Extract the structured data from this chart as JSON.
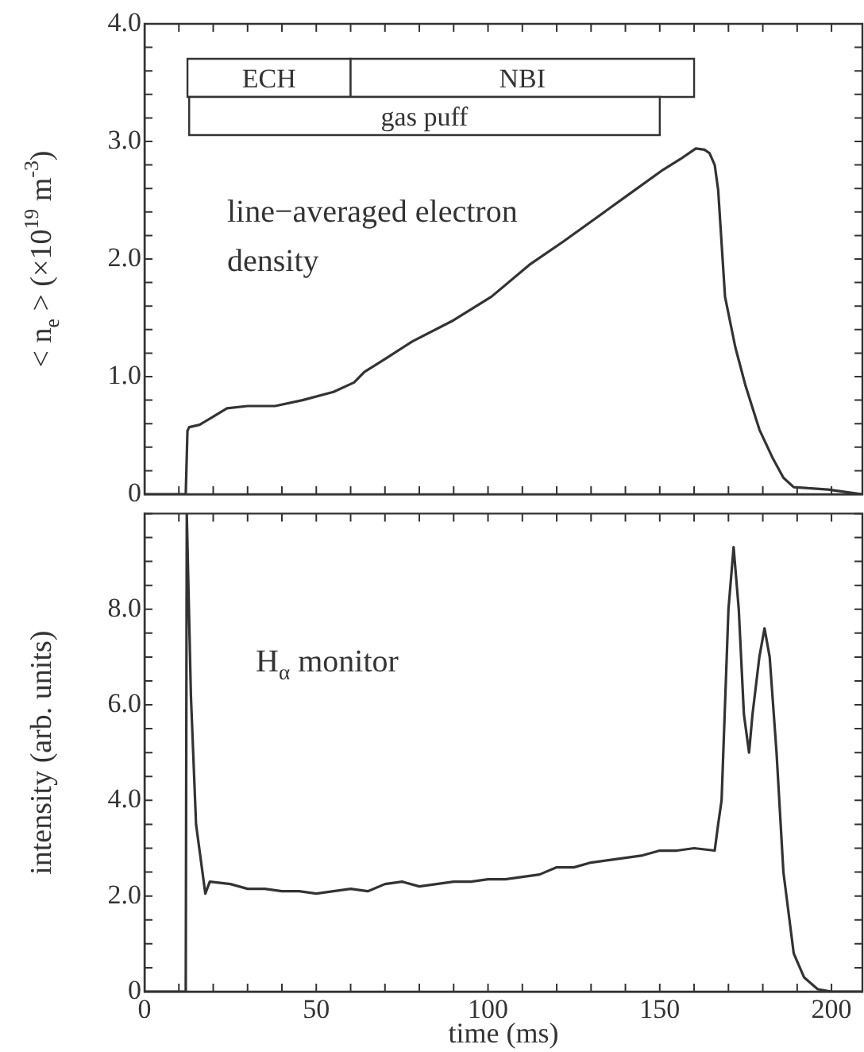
{
  "chart_data": [
    {
      "type": "line",
      "ylabel": "< n$_{e}$ > (×10$^{19}$ m$^{-3}$)",
      "annotations": [
        "line−averaged electron density"
      ],
      "color": "#333333",
      "tick_labels": "y",
      "bands": [
        {
          "axis": "x",
          "from": 12.5,
          "to": 60,
          "label": "ECH"
        },
        {
          "axis": "x",
          "from": 60,
          "to": 160,
          "label": "NBI"
        },
        {
          "axis": "x",
          "from": 13,
          "to": 150,
          "label": "gas puff"
        }
      ],
      "xlim": [
        0,
        209
      ],
      "ylim": [
        0,
        4
      ],
      "xticks": [
        0,
        {
          "value": 10,
          "label": null
        },
        {
          "value": 20,
          "label": null
        },
        {
          "value": 30,
          "label": null
        },
        {
          "value": 40,
          "label": null
        },
        50,
        {
          "value": 60,
          "label": null
        },
        {
          "value": 70,
          "label": null
        },
        {
          "value": 80,
          "label": null
        },
        {
          "value": 90,
          "label": null
        },
        100,
        {
          "value": 110,
          "label": null
        },
        {
          "value": 120,
          "label": null
        },
        {
          "value": 130,
          "label": null
        },
        {
          "value": 140,
          "label": null
        },
        150,
        {
          "value": 160,
          "label": null
        },
        {
          "value": 170,
          "label": null
        },
        {
          "value": 180,
          "label": null
        },
        {
          "value": 190,
          "label": null
        },
        200
      ],
      "yticks": [
        0,
        {
          "value": 0.2,
          "label": null
        },
        {
          "value": 0.4,
          "label": null
        },
        {
          "value": 0.6,
          "label": null
        },
        {
          "value": 0.8,
          "label": null
        },
        {
          "value": 1,
          "label": "1.0"
        },
        {
          "value": 1.2,
          "label": null
        },
        {
          "value": 1.4,
          "label": null
        },
        {
          "value": 1.6,
          "label": null
        },
        {
          "value": 1.8,
          "label": null
        },
        {
          "value": 2,
          "label": "2.0"
        },
        {
          "value": 2.2,
          "label": null
        },
        {
          "value": 2.4,
          "label": null
        },
        {
          "value": 2.6,
          "label": null
        },
        {
          "value": 2.8,
          "label": null
        },
        {
          "value": 3,
          "label": "3.0"
        },
        {
          "value": 3.2,
          "label": null
        },
        {
          "value": 3.4,
          "label": null
        },
        {
          "value": 3.6,
          "label": null
        },
        {
          "value": 3.8,
          "label": null
        },
        {
          "value": 4,
          "label": "4.0"
        }
      ],
      "x": [
        0,
        12,
        12.5,
        13,
        16,
        20,
        24,
        30,
        38,
        46,
        55,
        61,
        64,
        70,
        78,
        90,
        101,
        112,
        122,
        131.5,
        141,
        151,
        156,
        160.5,
        163,
        164.5,
        166,
        167,
        169,
        172,
        175,
        179,
        183,
        186,
        189,
        194,
        199,
        204,
        209
      ],
      "values": [
        0,
        0,
        0.54,
        0.57,
        0.59,
        0.66,
        0.73,
        0.75,
        0.75,
        0.8,
        0.87,
        0.95,
        1.04,
        1.15,
        1.3,
        1.48,
        1.68,
        1.95,
        2.15,
        2.35,
        2.55,
        2.76,
        2.85,
        2.94,
        2.93,
        2.9,
        2.8,
        2.59,
        1.68,
        1.25,
        0.92,
        0.55,
        0.3,
        0.14,
        0.06,
        0.05,
        0.04,
        0.02,
        0
      ]
    },
    {
      "type": "line",
      "xlabel": "time (ms)",
      "ylabel": "intensity (arb. units)",
      "annotations": [
        "H$_{α}$ monitor"
      ],
      "color": "#333333",
      "xlim": [
        0,
        209
      ],
      "ylim": [
        0,
        10
      ],
      "xticks": [
        0,
        {
          "value": 10,
          "label": null
        },
        {
          "value": 20,
          "label": null
        },
        {
          "value": 30,
          "label": null
        },
        {
          "value": 40,
          "label": null
        },
        50,
        {
          "value": 60,
          "label": null
        },
        {
          "value": 70,
          "label": null
        },
        {
          "value": 80,
          "label": null
        },
        {
          "value": 90,
          "label": null
        },
        100,
        {
          "value": 110,
          "label": null
        },
        {
          "value": 120,
          "label": null
        },
        {
          "value": 130,
          "label": null
        },
        {
          "value": 140,
          "label": null
        },
        150,
        {
          "value": 160,
          "label": null
        },
        {
          "value": 170,
          "label": null
        },
        {
          "value": 180,
          "label": null
        },
        {
          "value": 190,
          "label": null
        },
        200
      ],
      "yticks": [
        0,
        {
          "value": 0.5,
          "label": null
        },
        {
          "value": 1,
          "label": null
        },
        {
          "value": 1.5,
          "label": null
        },
        {
          "value": 2,
          "label": "2.0"
        },
        {
          "value": 2.5,
          "label": null
        },
        {
          "value": 3,
          "label": null
        },
        {
          "value": 3.5,
          "label": null
        },
        {
          "value": 4,
          "label": "4.0"
        },
        {
          "value": 4.5,
          "label": null
        },
        {
          "value": 5,
          "label": null
        },
        {
          "value": 5.5,
          "label": null
        },
        {
          "value": 6,
          "label": "6.0"
        },
        {
          "value": 6.5,
          "label": null
        },
        {
          "value": 7,
          "label": null
        },
        {
          "value": 7.5,
          "label": null
        },
        {
          "value": 8,
          "label": "8.0"
        },
        {
          "value": 8.5,
          "label": null
        },
        {
          "value": 9,
          "label": null
        },
        {
          "value": 9.5,
          "label": null
        },
        {
          "value": 10,
          "label": null
        }
      ],
      "x": [
        0,
        12,
        12.3,
        13.5,
        15,
        17.7,
        19,
        25,
        30,
        35,
        40,
        45,
        50,
        55,
        60,
        65,
        70,
        75,
        80,
        85,
        90,
        95,
        100,
        105,
        110,
        115,
        120,
        125,
        130,
        135,
        140,
        145,
        150,
        155,
        160,
        166,
        167,
        168,
        170,
        171.5,
        173,
        174.5,
        176,
        177,
        179,
        180.5,
        182,
        184,
        186,
        189,
        192,
        196,
        200,
        209
      ],
      "values": [
        0,
        0,
        10,
        6.2,
        3.5,
        2.05,
        2.3,
        2.25,
        2.15,
        2.15,
        2.1,
        2.1,
        2.05,
        2.1,
        2.15,
        2.1,
        2.25,
        2.3,
        2.2,
        2.25,
        2.3,
        2.3,
        2.35,
        2.35,
        2.4,
        2.45,
        2.6,
        2.6,
        2.7,
        2.75,
        2.8,
        2.85,
        2.95,
        2.95,
        3.0,
        2.95,
        3.5,
        4.0,
        8.0,
        9.3,
        8.0,
        5.8,
        5.0,
        5.8,
        7.0,
        7.6,
        7.0,
        5.0,
        2.5,
        0.8,
        0.3,
        0.05,
        0,
        0
      ]
    }
  ]
}
